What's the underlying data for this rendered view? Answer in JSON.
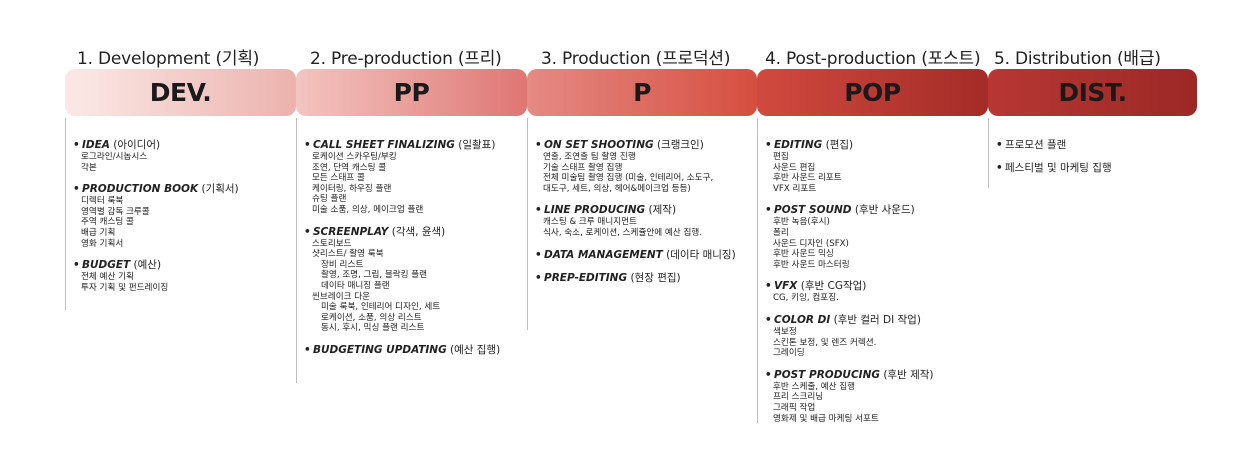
{
  "stages": [
    {
      "title": "1. Development (기획)",
      "code": "DEV.",
      "items": [
        {
          "en": "IDEA",
          "ko": "(아이디어)",
          "details": [
            "로그라인/시놉시스",
            "각본"
          ]
        },
        {
          "en": "PRODUCTION BOOK",
          "ko": "(기획서)",
          "details": [
            "디렉터 룩북",
            "영역별 감독 크루콜",
            "주역 캐스팅 콜",
            "배급 기획",
            "영화 기획서"
          ]
        },
        {
          "en": "BUDGET",
          "ko": "(예산)",
          "details": [
            "전체 예산 기획",
            "투자 기획 및 펀드레이징"
          ]
        }
      ]
    },
    {
      "title": "2. Pre-production (프리)",
      "code": "PP",
      "items": [
        {
          "en": "CALL SHEET FINALIZING",
          "ko": "(일촬표)",
          "details": [
            "로케이션 스카우팅/부킹",
            "조연, 단역 캐스팅 콜",
            "모든 스태프 콜",
            "케이터링, 하우징 플랜",
            "슈팅 플랜",
            "미술 소품, 의상, 메이크업 플랜"
          ]
        },
        {
          "en": "SCREENPLAY",
          "ko": "(각색, 윤색)",
          "details": [
            "스토리보드",
            "샷리스트/ 촬영 룩북",
            "  장비 리스트",
            "  촬영, 조명, 그립, 블락킹 플랜",
            "  데이타 매니징 플랜",
            "씬브레이크 다운",
            "  미술 룩북, 인테리어 디자인, 세트",
            "  로케이션, 소품, 의상 리스트",
            "  동시, 후시, 믹싱 플랜 리스트"
          ]
        },
        {
          "en": "BUDGETING UPDATING",
          "ko": "(예산 집행)",
          "details": []
        }
      ]
    },
    {
      "title": "3. Production (프로덕션)",
      "code": "P",
      "items": [
        {
          "en": "ON SET SHOOTING",
          "ko": "(크랭크인)",
          "details": [
            "연출, 조연출 팀 촬영 진행",
            "기술 스태프 촬영 집행",
            "전체 미술팀 촬영 집행 (미술, 인테리어, 소도구,",
            "대도구, 세트, 의상, 헤어&메이크업 등등)"
          ]
        },
        {
          "en": "LINE PRODUCING",
          "ko": "(제작)",
          "details": [
            "캐스팅 & 크루 매니지먼트",
            "식사, 숙소, 로케이션, 스케쥴안에 예산 집행."
          ]
        },
        {
          "en": "DATA MANAGEMENT",
          "ko": "(데이타 매니징)",
          "details": []
        },
        {
          "en": "PREP-EDITING",
          "ko": "(현장 편집)",
          "details": []
        }
      ]
    },
    {
      "title": "4. Post-production (포스트)",
      "code": "POP",
      "items": [
        {
          "en": "EDITING",
          "ko": "(편집)",
          "details": [
            "편집",
            "사운드 편집",
            "후반 사운드 리포트",
            "VFX 리포트"
          ]
        },
        {
          "en": "POST SOUND",
          "ko": "(후반 사운드)",
          "details": [
            "후반 녹음(후시)",
            "폴리",
            "사운드 디자인 (SFX)",
            "후반 사운드 믹싱",
            "후반 사운드 마스터링"
          ]
        },
        {
          "en": "VFX",
          "ko": "(후반 CG작업)",
          "details": [
            " CG, 키잉, 컴포징."
          ]
        },
        {
          "en": "COLOR DI",
          "ko": "(후반 컬러 DI 작업)",
          "details": [
            "색보정",
            "스킨톤 보정, 및 렌즈 커렉션.",
            "그레이딩"
          ]
        },
        {
          "en": "POST PRODUCING",
          "ko": "(후반 제작)",
          "details": [
            "후반 스케줄, 예산 집행",
            "프리 스크리닝",
            "그래픽 작업",
            "영화제 및 배급 마케팅 서포트"
          ]
        }
      ]
    },
    {
      "title": "5. Distribution (배급)",
      "code": "DIST.",
      "items": [
        {
          "en": "",
          "ko": "프로모션 플랜",
          "details": []
        },
        {
          "en": "",
          "ko": "페스티벌 및 마케팅 집행",
          "details": []
        }
      ]
    }
  ],
  "colors": {
    "band_gradients": [
      [
        "#fbe9e7",
        "#ecb2ad"
      ],
      [
        "#f3c5c1",
        "#df7673"
      ],
      [
        "#e58a84",
        "#d64e3f"
      ],
      [
        "#d14a3f",
        "#a42b27"
      ],
      [
        "#b73733",
        "#9c2826"
      ]
    ]
  }
}
